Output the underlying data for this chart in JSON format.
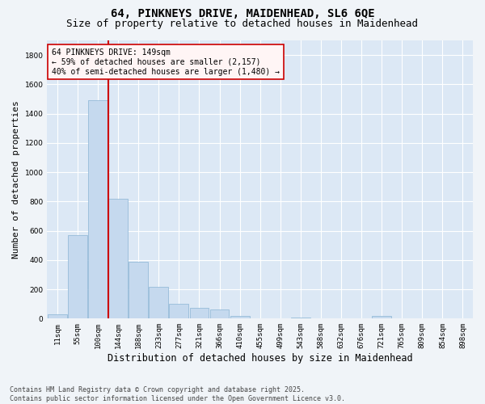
{
  "title_line1": "64, PINKNEYS DRIVE, MAIDENHEAD, SL6 6QE",
  "title_line2": "Size of property relative to detached houses in Maidenhead",
  "xlabel": "Distribution of detached houses by size in Maidenhead",
  "ylabel": "Number of detached properties",
  "bar_color": "#c5d9ee",
  "bar_edge_color": "#8ab4d4",
  "background_color": "#dce8f5",
  "fig_background_color": "#f0f4f8",
  "grid_color": "#ffffff",
  "categories": [
    "11sqm",
    "55sqm",
    "100sqm",
    "144sqm",
    "188sqm",
    "233sqm",
    "277sqm",
    "321sqm",
    "366sqm",
    "410sqm",
    "455sqm",
    "499sqm",
    "543sqm",
    "588sqm",
    "632sqm",
    "676sqm",
    "721sqm",
    "765sqm",
    "809sqm",
    "854sqm",
    "898sqm"
  ],
  "values": [
    30,
    570,
    1490,
    820,
    390,
    215,
    100,
    75,
    65,
    20,
    0,
    0,
    10,
    0,
    0,
    0,
    20,
    0,
    0,
    0,
    0
  ],
  "ylim": [
    0,
    1900
  ],
  "yticks": [
    0,
    200,
    400,
    600,
    800,
    1000,
    1200,
    1400,
    1600,
    1800
  ],
  "annotation_line1": "64 PINKNEYS DRIVE: 149sqm",
  "annotation_line2": "← 59% of detached houses are smaller (2,157)",
  "annotation_line3": "40% of semi-detached houses are larger (1,480) →",
  "vline_color": "#cc0000",
  "vline_x_index": 2.5,
  "annotation_box_facecolor": "#fff5f5",
  "annotation_box_edge": "#cc0000",
  "footer_line1": "Contains HM Land Registry data © Crown copyright and database right 2025.",
  "footer_line2": "Contains public sector information licensed under the Open Government Licence v3.0.",
  "title_fontsize": 10,
  "subtitle_fontsize": 9,
  "tick_fontsize": 6.5,
  "xlabel_fontsize": 8.5,
  "ylabel_fontsize": 8,
  "annotation_fontsize": 7,
  "footer_fontsize": 6
}
